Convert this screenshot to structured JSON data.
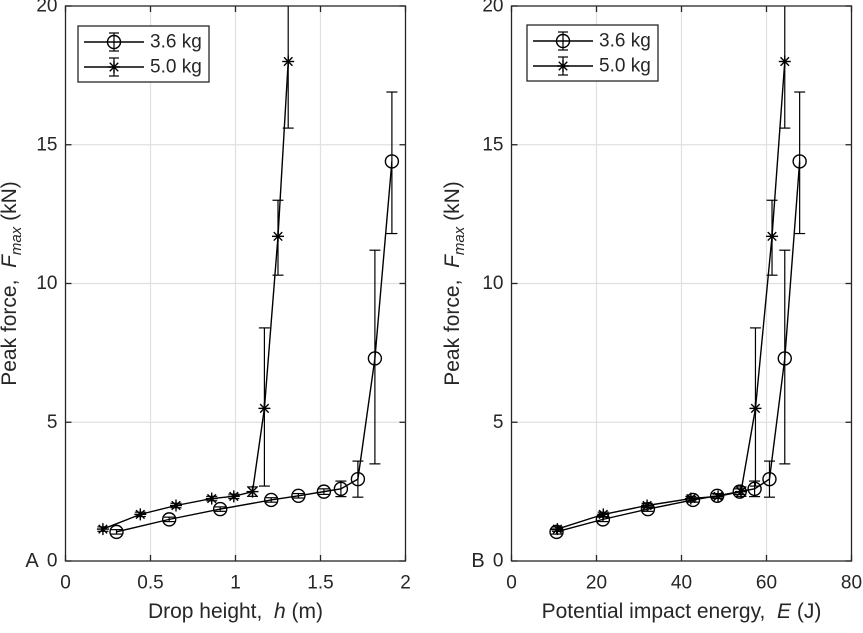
{
  "figure": {
    "background": "#ffffff",
    "panel_letters": [
      "A",
      "B"
    ]
  },
  "colors": {
    "data_line": "#000000",
    "axis_frame": "#262626",
    "text": "#262626",
    "gridline": "#e0e0e0",
    "plot_background": "#ffffff"
  },
  "legend": {
    "entries": [
      {
        "label": "3.6 kg",
        "marker": "circle-errorbar"
      },
      {
        "label": "5.0 kg",
        "marker": "asterisk-errorbar"
      }
    ]
  },
  "chart_data": [
    {
      "type": "line",
      "panel_label": "A",
      "title": "",
      "xlabel": "Drop height, h (m)",
      "xlabel_parts": {
        "prefix": "Drop height,",
        "symbol": "h",
        "subscript": "",
        "suffix": "(m)"
      },
      "ylabel": "Peak force, Fmax (kN)",
      "ylabel_parts": {
        "prefix": "Peak force,",
        "symbol": "F",
        "subscript": "max",
        "suffix": "(kN)"
      },
      "xlim": [
        0,
        2
      ],
      "ylim": [
        0,
        20
      ],
      "xticks": [
        0,
        0.5,
        1,
        1.5,
        2
      ],
      "xtick_labels": [
        "0",
        "0.5",
        "1",
        "1.5",
        "2"
      ],
      "yticks": [
        0,
        5,
        10,
        15,
        20
      ],
      "ytick_labels": [
        "0",
        "5",
        "10",
        "15",
        "20"
      ],
      "grid": true,
      "legend_position": "top-left",
      "series": [
        {
          "name": "3.6 kg",
          "marker": "circle",
          "x": [
            0.3,
            0.61,
            0.91,
            1.21,
            1.37,
            1.52,
            1.62,
            1.72,
            1.82,
            1.92
          ],
          "y": [
            1.05,
            1.5,
            1.87,
            2.2,
            2.35,
            2.5,
            2.6,
            2.95,
            7.3,
            14.4
          ],
          "err_lo": [
            0.97,
            1.42,
            1.79,
            2.12,
            2.27,
            2.4,
            2.32,
            2.3,
            3.5,
            11.8
          ],
          "err_hi": [
            1.13,
            1.58,
            1.95,
            2.28,
            2.43,
            2.6,
            2.88,
            3.6,
            11.2,
            16.9
          ]
        },
        {
          "name": "5.0 kg",
          "marker": "asterisk",
          "x": [
            0.22,
            0.44,
            0.65,
            0.86,
            0.99,
            1.1,
            1.17,
            1.25,
            1.31
          ],
          "y": [
            1.15,
            1.68,
            2.0,
            2.25,
            2.33,
            2.5,
            5.5,
            11.7,
            18.0
          ],
          "err_lo": [
            1.07,
            1.6,
            1.92,
            2.17,
            2.25,
            2.33,
            2.7,
            10.3,
            15.6
          ],
          "err_hi": [
            1.23,
            1.76,
            2.08,
            2.33,
            2.41,
            2.67,
            8.4,
            13.0,
            20.4
          ]
        }
      ]
    },
    {
      "type": "line",
      "panel_label": "B",
      "title": "",
      "xlabel": "Potential impact energy, E (J)",
      "xlabel_parts": {
        "prefix": "Potential impact energy,",
        "symbol": "E",
        "subscript": "",
        "suffix": "(J)"
      },
      "ylabel": "Peak force, Fmax (kN)",
      "ylabel_parts": {
        "prefix": "Peak force,",
        "symbol": "F",
        "subscript": "max",
        "suffix": "(kN)"
      },
      "xlim": [
        0,
        80
      ],
      "ylim": [
        0,
        20
      ],
      "xticks": [
        0,
        20,
        40,
        60,
        80
      ],
      "xtick_labels": [
        "0",
        "20",
        "40",
        "60",
        "80"
      ],
      "yticks": [
        0,
        5,
        10,
        15,
        20
      ],
      "ytick_labels": [
        "0",
        "5",
        "10",
        "15",
        "20"
      ],
      "grid": true,
      "legend_position": "top-left",
      "series": [
        {
          "name": "3.6 kg",
          "marker": "circle",
          "x": [
            10.6,
            21.5,
            32.1,
            42.7,
            48.4,
            53.7,
            57.2,
            60.7,
            64.3,
            67.8
          ],
          "y": [
            1.05,
            1.5,
            1.87,
            2.2,
            2.35,
            2.5,
            2.6,
            2.95,
            7.3,
            14.4
          ],
          "err_lo": [
            0.97,
            1.42,
            1.79,
            2.12,
            2.27,
            2.4,
            2.32,
            2.3,
            3.5,
            11.8
          ],
          "err_hi": [
            1.13,
            1.58,
            1.95,
            2.28,
            2.43,
            2.6,
            2.88,
            3.6,
            11.2,
            16.9
          ]
        },
        {
          "name": "5.0 kg",
          "marker": "asterisk",
          "x": [
            10.8,
            21.6,
            31.9,
            42.2,
            48.6,
            54.0,
            57.4,
            61.3,
            64.3
          ],
          "y": [
            1.15,
            1.68,
            2.0,
            2.25,
            2.33,
            2.5,
            5.5,
            11.7,
            18.0
          ],
          "err_lo": [
            1.07,
            1.6,
            1.92,
            2.17,
            2.25,
            2.33,
            2.7,
            10.3,
            15.6
          ],
          "err_hi": [
            1.23,
            1.76,
            2.08,
            2.33,
            2.41,
            2.67,
            8.4,
            13.0,
            20.4
          ]
        }
      ]
    }
  ]
}
